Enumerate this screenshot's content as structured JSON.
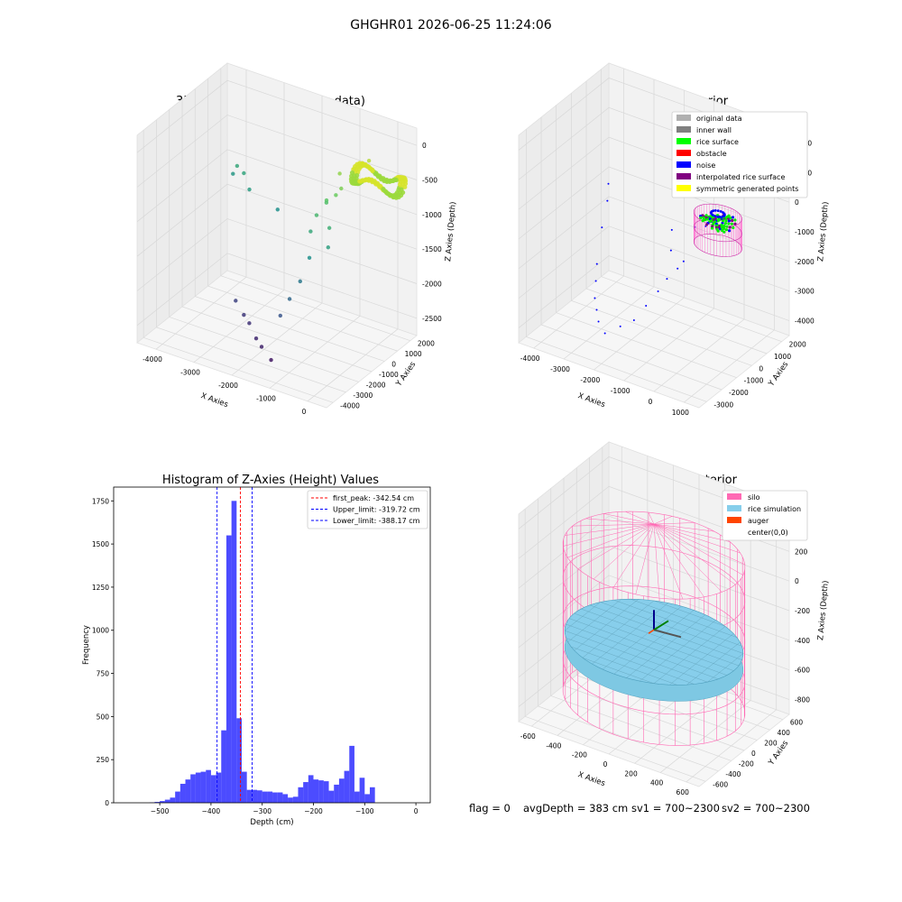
{
  "figure": {
    "suptitle": "GHGHR01 2026-06-25 11:24:06",
    "status": {
      "flag": "flag = 0",
      "avg_depth": "avgDepth = 383 cm",
      "sv1": "sv1 = 700~2300",
      "sv2": "sv2 = 700~2300"
    }
  },
  "chart_data": [
    {
      "type": "scatter",
      "projection": "3d",
      "title": "3D Plot of Silo Interior(row data)",
      "xlabel": "X Axies",
      "ylabel": "Y Axies",
      "zlabel": "Z Axies (Depth)",
      "x_ticks": [
        "-4000",
        "-3000",
        "-2000",
        "-1000",
        "0"
      ],
      "y_ticks": [
        "-4000",
        "-3000",
        "-2000",
        "-1000",
        "0",
        "1000",
        "2000"
      ],
      "z_ticks": [
        "0",
        "-500",
        "-1000",
        "-1500",
        "-2000",
        "-2500"
      ],
      "grid": true,
      "colormap": "viridis by depth",
      "points": [
        [
          -3900,
          1800,
          -1200
        ],
        [
          -3700,
          1500,
          -1000
        ],
        [
          -3500,
          1400,
          -1050
        ],
        [
          -3200,
          900,
          -1150
        ],
        [
          -2600,
          -2000,
          -2200
        ],
        [
          -2300,
          -2300,
          -2300
        ],
        [
          -2100,
          -2500,
          -2350
        ],
        [
          -1800,
          -2900,
          -2450
        ],
        [
          -1600,
          -3100,
          -2500
        ],
        [
          -1300,
          -3300,
          -2600
        ],
        [
          -1200,
          -2900,
          -2000
        ],
        [
          -1100,
          -2500,
          -1800
        ],
        [
          -1000,
          -2000,
          -1600
        ],
        [
          -900,
          -1600,
          -1300
        ],
        [
          -1000,
          -1200,
          -1000
        ],
        [
          -950,
          -900,
          -800
        ],
        [
          -800,
          -600,
          -600
        ],
        [
          -600,
          -500,
          -500
        ],
        [
          -500,
          -400,
          -400
        ],
        [
          -700,
          100,
          -300
        ],
        [
          -400,
          300,
          -200
        ],
        [
          -300,
          600,
          -150
        ],
        [
          -200,
          800,
          -120
        ],
        [
          -600,
          -1000,
          -900
        ],
        [
          -500,
          -1400,
          -1100
        ],
        [
          -900,
          -300,
          -700
        ],
        [
          -2500,
          900,
          -1300
        ]
      ],
      "surface_ring": {
        "center_x": 0,
        "center_y": 0,
        "depth_range": [
          -500,
          -200
        ],
        "color": "yellow-green"
      }
    },
    {
      "type": "scatter",
      "projection": "3d",
      "title": "3D classify of Silo Interior",
      "xlabel": "X Axies",
      "ylabel": "Y Axies",
      "zlabel": "Z Axies (Depth)",
      "x_ticks": [
        "-4000",
        "-3000",
        "-2000",
        "-1000",
        "0",
        "1000"
      ],
      "y_ticks": [
        "-3000",
        "-2000",
        "-1000",
        "0",
        "1000",
        "2000"
      ],
      "z_ticks": [
        "2000",
        "1000",
        "0",
        "-1000",
        "-2000",
        "-3000",
        "-4000"
      ],
      "grid": true,
      "legend_position": "top-right",
      "legend": [
        {
          "label": "original data",
          "color": "#b0b0b0"
        },
        {
          "label": "inner wall",
          "color": "#808080"
        },
        {
          "label": "rice surface",
          "color": "#00ff00"
        },
        {
          "label": "obstacle",
          "color": "#ff0000"
        },
        {
          "label": "noise",
          "color": "#0000ff"
        },
        {
          "label": "interpolated rice surface",
          "color": "#800080"
        },
        {
          "label": "symmetric generated points",
          "color": "#ffff00"
        }
      ],
      "noise_points": [
        [
          -3800,
          1500,
          -800
        ],
        [
          -3600,
          1000,
          -1100
        ],
        [
          -3400,
          200,
          -1600
        ],
        [
          -3000,
          -1000,
          -2200
        ],
        [
          -2800,
          -1500,
          -2500
        ],
        [
          -2600,
          -2000,
          -2800
        ],
        [
          -2400,
          -2300,
          -3000
        ],
        [
          -2200,
          -2600,
          -3200
        ],
        [
          -1900,
          -2800,
          -3400
        ],
        [
          -1500,
          -2600,
          -3100
        ],
        [
          -1200,
          -2300,
          -2900
        ],
        [
          -1000,
          -1900,
          -2500
        ],
        [
          -800,
          -1500,
          -2100
        ],
        [
          -700,
          -1100,
          -1800
        ],
        [
          -500,
          -800,
          -1500
        ],
        [
          -400,
          -600,
          -1300
        ],
        [
          -900,
          -400,
          -1200
        ],
        [
          -1200,
          300,
          -900
        ],
        [
          -600,
          600,
          -700
        ],
        [
          -300,
          700,
          -600
        ],
        [
          -200,
          900,
          -500
        ]
      ]
    },
    {
      "type": "bar",
      "title": "Histogram of Z-Axies (Height) Values",
      "xlabel": "Depth (cm)",
      "ylabel": "Frequency",
      "xlim": [
        -590,
        28
      ],
      "ylim": [
        0,
        1830
      ],
      "x_ticks": [
        -500,
        -400,
        -300,
        -200,
        -100,
        0
      ],
      "y_ticks": [
        0,
        250,
        500,
        750,
        1000,
        1250,
        1500,
        1750
      ],
      "bar_color": "#0000ff",
      "bin_width": 10,
      "bin_left_edges": [
        -590,
        -580,
        -570,
        -560,
        -550,
        -540,
        -530,
        -520,
        -510,
        -500,
        -490,
        -480,
        -470,
        -460,
        -450,
        -440,
        -430,
        -420,
        -410,
        -400,
        -390,
        -380,
        -370,
        -360,
        -350,
        -340,
        -330,
        -320,
        -310,
        -300,
        -290,
        -280,
        -270,
        -260,
        -250,
        -240,
        -230,
        -220,
        -210,
        -200,
        -190,
        -180,
        -170,
        -160,
        -150,
        -140,
        -130,
        -120,
        -110,
        -100,
        -90,
        -80,
        -70,
        -60,
        -50,
        -40,
        -30,
        -20,
        -10,
        0
      ],
      "values": [
        0,
        0,
        0,
        0,
        0,
        0,
        0,
        2,
        5,
        10,
        18,
        30,
        65,
        110,
        135,
        165,
        175,
        180,
        190,
        160,
        175,
        420,
        1550,
        1750,
        490,
        180,
        75,
        75,
        72,
        65,
        65,
        60,
        60,
        50,
        30,
        35,
        90,
        120,
        160,
        135,
        130,
        125,
        70,
        105,
        140,
        185,
        330,
        65,
        145,
        50,
        90,
        0,
        0,
        0,
        0,
        0,
        0,
        0,
        0,
        0
      ],
      "reference_lines": [
        {
          "label": "first_peak: -342.54 cm",
          "value": -342.54,
          "color": "#ff0000"
        },
        {
          "label": "Upper_limit: -319.72 cm",
          "value": -319.72,
          "color": "#0000ff"
        },
        {
          "label": "Lower_limit: -388.17 cm",
          "value": -388.17,
          "color": "#0000ff"
        }
      ],
      "legend_position": "top-right"
    },
    {
      "type": "surface",
      "projection": "3d",
      "title": "3D simulation of Silo Interior",
      "xlabel": "X Axies",
      "ylabel": "Y Axies",
      "zlabel": "Z Axies (Depth)",
      "x_ticks": [
        "-600",
        "-400",
        "-200",
        "0",
        "200",
        "400",
        "600"
      ],
      "y_ticks": [
        "-600",
        "-400",
        "-200",
        "0",
        "200",
        "400",
        "600"
      ],
      "z_ticks": [
        "400",
        "200",
        "0",
        "-200",
        "-400",
        "-600",
        "-800"
      ],
      "grid": true,
      "legend_position": "top-right",
      "legend": [
        {
          "label": "silo",
          "color": "#ff69b4"
        },
        {
          "label": "rice simulation",
          "color": "#87ceeb"
        },
        {
          "label": "auger",
          "color": "#ff4500"
        },
        {
          "label": "center(0,0)",
          "color": "#ffffff"
        }
      ]
    }
  ]
}
